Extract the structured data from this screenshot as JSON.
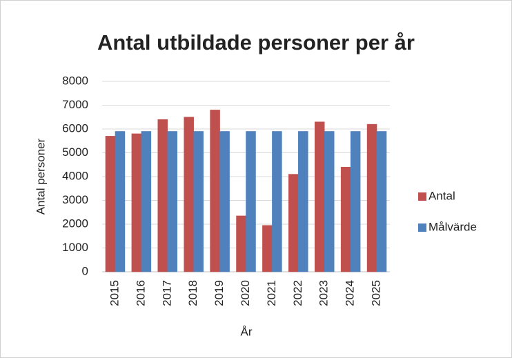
{
  "chart_data": {
    "type": "bar",
    "title": "Antal utbildade personer per år",
    "x_label": "År",
    "y_label": "Antal personer",
    "categories": [
      "2015",
      "2016",
      "2017",
      "2018",
      "2019",
      "2020",
      "2021",
      "2022",
      "2023",
      "2024",
      "2025"
    ],
    "series": [
      {
        "name": "Antal",
        "color": "#c0504d",
        "values": [
          5700,
          5800,
          6400,
          6500,
          6800,
          2350,
          1950,
          4100,
          6300,
          4400,
          6200
        ]
      },
      {
        "name": "Målvärde",
        "color": "#4f81bd",
        "values": [
          5900,
          5900,
          5900,
          5900,
          5900,
          5900,
          5900,
          5900,
          5900,
          5900,
          5900
        ]
      }
    ],
    "ylim": [
      0,
      8000
    ],
    "yticks": [
      0,
      1000,
      2000,
      3000,
      4000,
      5000,
      6000,
      7000,
      8000
    ],
    "grid": true,
    "legend": "right"
  }
}
